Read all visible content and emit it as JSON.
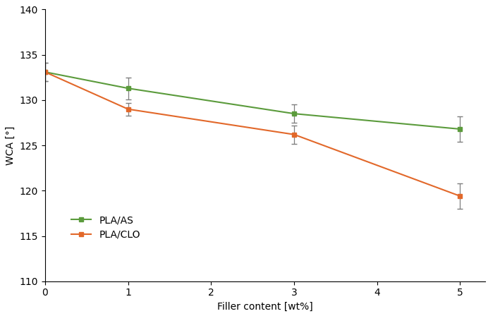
{
  "chart_data": {
    "type": "line",
    "x_label": "Filler content [wt%]",
    "y_label": "WCA [°]",
    "xlim": [
      0,
      5.3
    ],
    "xticks": [
      0,
      1,
      2,
      3,
      4,
      5
    ],
    "ylim": [
      110,
      140
    ],
    "yticks": [
      110,
      115,
      120,
      125,
      130,
      135,
      140
    ],
    "grid": false,
    "legend": "lower left",
    "marker": "s",
    "line_style": "solid",
    "series": [
      {
        "name": "PLA/AS",
        "color": "#5b9b3c",
        "x": [
          0,
          1,
          3,
          5
        ],
        "values": [
          133.1,
          131.3,
          128.5,
          126.8
        ],
        "errors": [
          1.0,
          1.2,
          1.0,
          1.4
        ]
      },
      {
        "name": "PLA/CLO",
        "color": "#e2682a",
        "x": [
          0,
          1,
          3,
          5
        ],
        "values": [
          133.1,
          129.0,
          126.2,
          119.4
        ],
        "errors": [
          1.0,
          0.7,
          1.0,
          1.4
        ]
      }
    ]
  }
}
